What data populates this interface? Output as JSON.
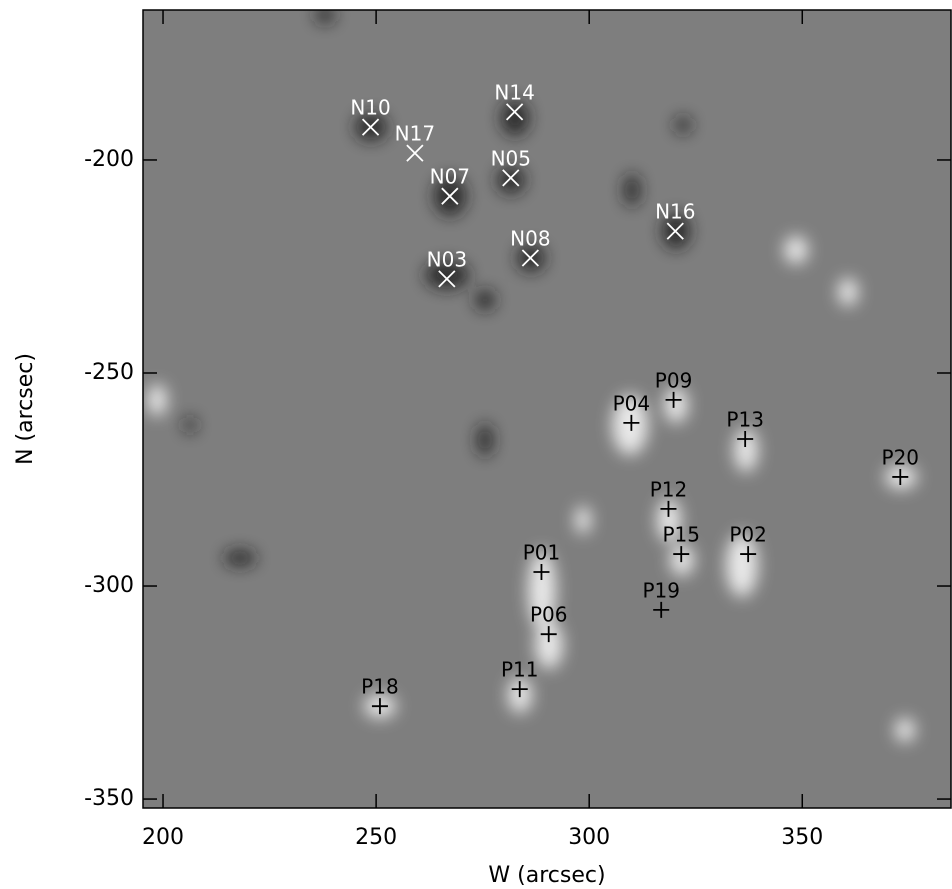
{
  "chart_data": {
    "type": "scatter",
    "xlabel": "W (arcsec)",
    "ylabel": "N (arcsec)",
    "xlim": [
      195.3,
      384.9
    ],
    "ylim": [
      -352.1,
      -164.8
    ],
    "xticks": [
      200,
      250,
      300,
      350
    ],
    "yticks": [
      -200,
      -250,
      -300,
      -350
    ],
    "series": [
      {
        "marker": "x",
        "color": "#ffffff",
        "labels": [
          "N10",
          "N14",
          "N17",
          "N05",
          "N07",
          "N16",
          "N08",
          "N03"
        ],
        "x": [
          248.7,
          282.5,
          259.1,
          281.6,
          267.3,
          320.2,
          286.2,
          266.6
        ],
        "y": [
          -192.3,
          -188.7,
          -198.4,
          -204.2,
          -208.5,
          -216.7,
          -223.0,
          -227.9
        ]
      },
      {
        "marker": "+",
        "color": "#000000",
        "labels": [
          "P09",
          "P04",
          "P13",
          "P20",
          "P12",
          "P15",
          "P02",
          "P01",
          "P19",
          "P06",
          "P11",
          "P18"
        ],
        "x": [
          319.8,
          309.9,
          336.6,
          373.0,
          318.6,
          321.6,
          337.3,
          288.8,
          316.9,
          290.5,
          283.7,
          250.9
        ],
        "y": [
          -256.3,
          -261.7,
          -265.5,
          -274.4,
          -281.9,
          -292.5,
          -292.5,
          -296.7,
          -305.6,
          -311.3,
          -324.2,
          -328.2
        ]
      }
    ]
  }
}
